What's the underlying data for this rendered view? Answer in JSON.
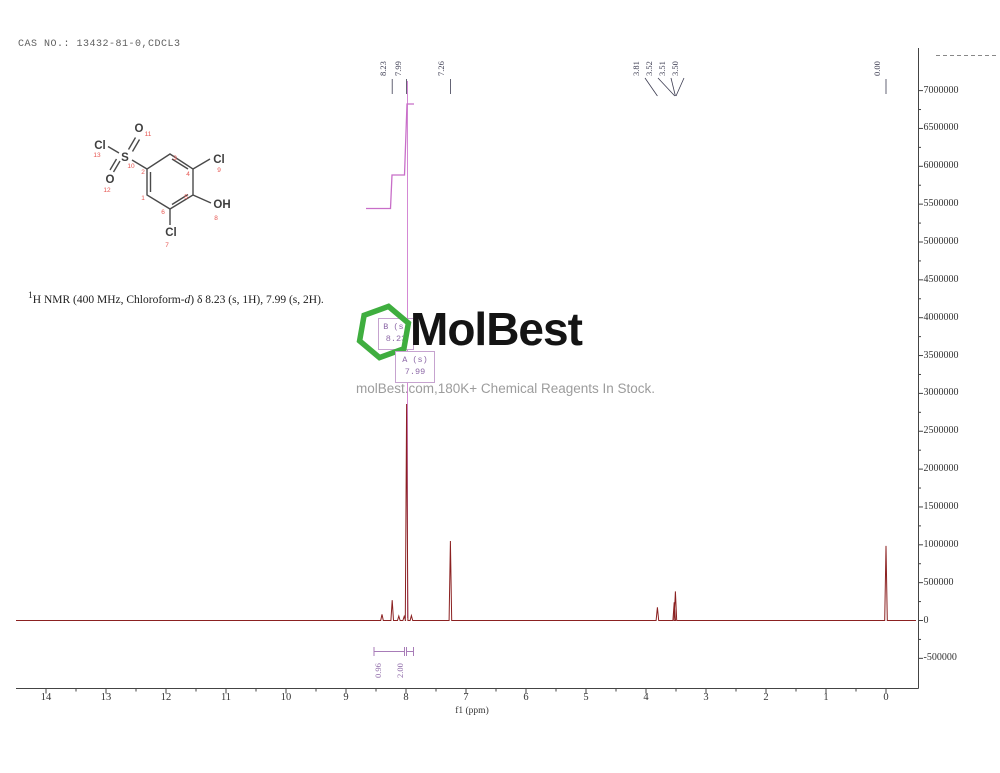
{
  "header": {
    "cas_line": "CAS NO.: 13432-81-0,CDCL3"
  },
  "annotation": {
    "sup": "1",
    "seg1": "H NMR (400 MHz, Chloroform-",
    "italic": "d",
    "seg2": ") δ 8.23 (s, 1H), 7.99 (s, 2H)."
  },
  "watermark": {
    "brand": "MolBest",
    "tagline": "molBest.com,180K+ Chemical Reagents In Stock.",
    "hexagon_color": "#3fae3f"
  },
  "multiplets": [
    {
      "label": "B (s)",
      "shift": "8.23"
    },
    {
      "label": "A (s)",
      "shift": "7.99"
    }
  ],
  "integrations": [
    {
      "value": "0.96"
    },
    {
      "value": "2.00"
    }
  ],
  "peak_labels": [
    {
      "text": "8.23",
      "ppm": 8.23
    },
    {
      "text": "7.99",
      "ppm": 7.99
    },
    {
      "text": "7.26",
      "ppm": 7.26
    },
    {
      "text": "3.81",
      "ppm": 3.81
    },
    {
      "text": "3.52",
      "ppm": 3.52
    },
    {
      "text": "3.51",
      "ppm": 3.51
    },
    {
      "text": "3.50",
      "ppm": 3.5
    },
    {
      "text": "0.00",
      "ppm": 0.0
    }
  ],
  "axes": {
    "x": {
      "label": "f1 (ppm)",
      "ticks": [
        14,
        13,
        12,
        11,
        10,
        9,
        8,
        7,
        6,
        5,
        4,
        3,
        2,
        1,
        0
      ]
    },
    "y": {
      "ticks": [
        7000000,
        6500000,
        6000000,
        5500000,
        5000000,
        4500000,
        4000000,
        3500000,
        3000000,
        2500000,
        2000000,
        1500000,
        1000000,
        500000,
        0,
        -500000
      ]
    }
  },
  "structure": {
    "atoms": {
      "s": "S",
      "cl13": "Cl",
      "o11": "O",
      "o12": "O",
      "cl9": "Cl",
      "oh": "OH",
      "cl7": "Cl"
    },
    "atom_numbers": {
      "n13": "13",
      "n10": "10",
      "n11": "11",
      "n12": "12",
      "n9": "9",
      "n8": "8",
      "n7": "7"
    },
    "ring_numbers": {
      "n1": "1",
      "n2": "2",
      "n3": "3",
      "n4": "4",
      "n5": "5",
      "n6": "6"
    }
  },
  "colors": {
    "spectrum": "#8b2121",
    "integral": "#c86ec8",
    "bracket": "#a87cb8",
    "multiplet_line": "#d488d4",
    "peak_label": "#3d3d52",
    "axis": "#444444",
    "structure_numbers": "#e65550"
  },
  "chart_data": {
    "type": "line",
    "title": "1H NMR (400 MHz, Chloroform-d)",
    "xlabel": "f1 (ppm)",
    "x_axis_reversed": true,
    "xlim": [
      14.8,
      -0.55
    ],
    "ylim": [
      -900000,
      7700000
    ],
    "x_ticks": [
      14,
      13,
      12,
      11,
      10,
      9,
      8,
      7,
      6,
      5,
      4,
      3,
      2,
      1,
      0
    ],
    "y_ticks": [
      7000000,
      6500000,
      6000000,
      5500000,
      5000000,
      4500000,
      4000000,
      3500000,
      3000000,
      2500000,
      2000000,
      1500000,
      1000000,
      500000,
      0,
      -500000
    ],
    "peaks": [
      {
        "ppm": 8.4,
        "intensity": 80000
      },
      {
        "ppm": 8.23,
        "intensity": 270000
      },
      {
        "ppm": 8.12,
        "intensity": 60000
      },
      {
        "ppm": 8.03,
        "intensity": 55000
      },
      {
        "ppm": 7.99,
        "intensity": 2860000
      },
      {
        "ppm": 7.91,
        "intensity": 65000
      },
      {
        "ppm": 7.26,
        "intensity": 1050000
      },
      {
        "ppm": 3.81,
        "intensity": 175000
      },
      {
        "ppm": 3.53,
        "intensity": 240000
      },
      {
        "ppm": 3.51,
        "intensity": 385000
      },
      {
        "ppm": 0.0,
        "intensity": 985000
      }
    ],
    "annotated_shifts": [
      8.23,
      7.99,
      7.26,
      3.81,
      3.52,
      3.51,
      3.5,
      0.0
    ],
    "integrals": [
      {
        "ppm_from": 8.6,
        "ppm_to": 8.05,
        "value": 0.96
      },
      {
        "ppm_from": 8.05,
        "ppm_to": 7.9,
        "value": 2.0
      }
    ],
    "solvent_peak_ppm": 7.26,
    "reference_peak_ppm": 0.0
  }
}
